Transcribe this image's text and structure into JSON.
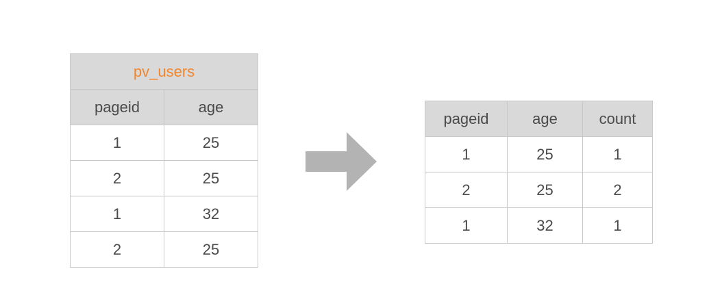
{
  "left_table": {
    "title": "pv_users",
    "headers": [
      "pageid",
      "age"
    ],
    "rows": [
      [
        "1",
        "25"
      ],
      [
        "2",
        "25"
      ],
      [
        "1",
        "32"
      ],
      [
        "2",
        "25"
      ]
    ]
  },
  "arrow": {
    "icon": "right-arrow-icon",
    "color": "#b3b3b3"
  },
  "right_table": {
    "headers": [
      "pageid",
      "age",
      "count"
    ],
    "rows": [
      [
        "1",
        "25",
        "1"
      ],
      [
        "2",
        "25",
        "2"
      ],
      [
        "1",
        "32",
        "1"
      ]
    ]
  },
  "colors": {
    "title": "#f0862d",
    "header_bg": "#d9d9d9",
    "border": "#c8c8c8",
    "text": "#4a4a4a"
  }
}
